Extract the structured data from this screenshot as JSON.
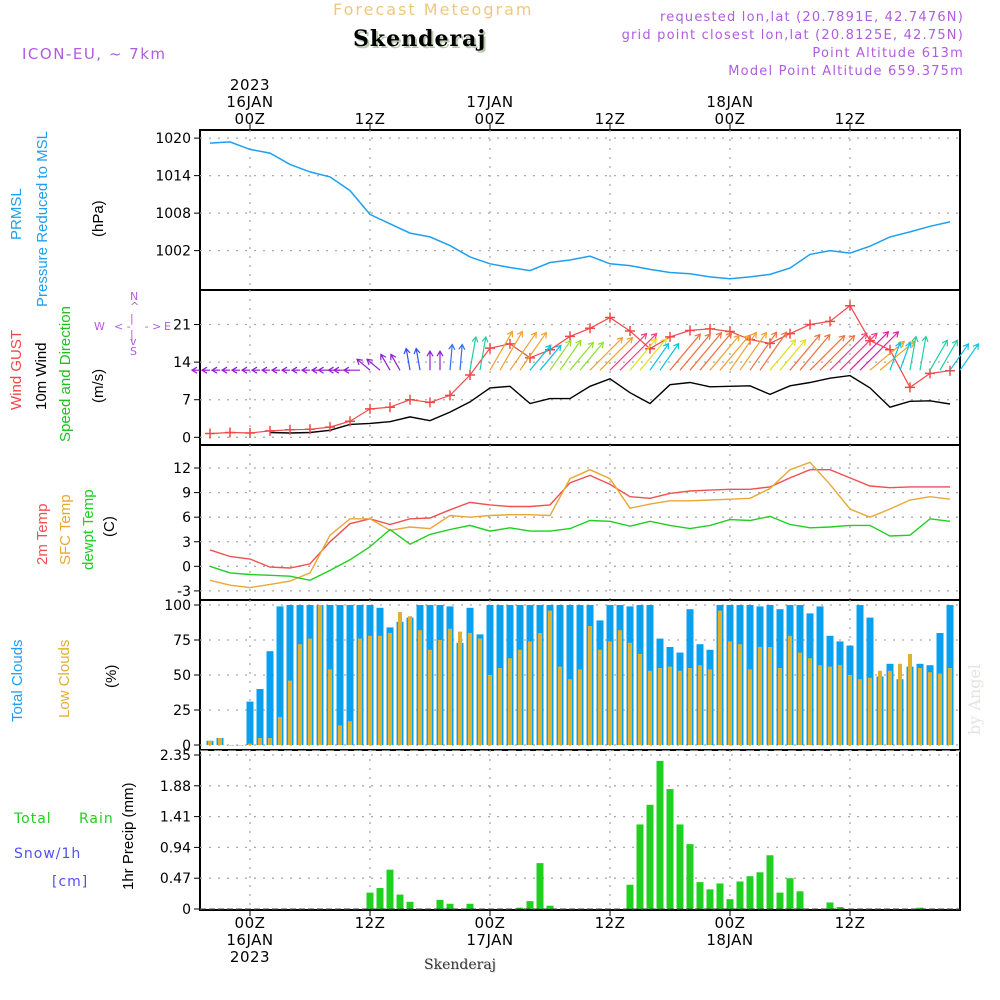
{
  "header": {
    "product_title": "Forecast Meteogram",
    "station": "Skenderaj",
    "model": "ICON-EU, ~ 7km",
    "requested": "requested lon,lat (20.7891E, 42.7476N)",
    "grid_point": "grid point closest lon,lat (20.8125E, 42.75N)",
    "point_altitude": "Point Altitude 613m",
    "model_altitude": "Model Point Altitude 659.375m"
  },
  "time_axis": {
    "top_labels": [
      {
        "hour": 0,
        "lines": [
          "2023",
          "16JAN",
          "00Z"
        ]
      },
      {
        "hour": 12,
        "lines": [
          "",
          "",
          "12Z"
        ]
      },
      {
        "hour": 24,
        "lines": [
          "",
          "17JAN",
          "00Z"
        ]
      },
      {
        "hour": 36,
        "lines": [
          "",
          "",
          "12Z"
        ]
      },
      {
        "hour": 48,
        "lines": [
          "",
          "18JAN",
          "00Z"
        ]
      },
      {
        "hour": 60,
        "lines": [
          "",
          "",
          "12Z"
        ]
      }
    ],
    "bottom_labels": [
      {
        "hour": 0,
        "lines": [
          "00Z",
          "16JAN",
          "2023"
        ]
      },
      {
        "hour": 12,
        "lines": [
          "12Z"
        ]
      },
      {
        "hour": 24,
        "lines": [
          "00Z",
          "17JAN"
        ]
      },
      {
        "hour": 36,
        "lines": [
          "12Z"
        ]
      },
      {
        "hour": 48,
        "lines": [
          "00Z",
          "18JAN"
        ]
      },
      {
        "hour": 60,
        "lines": [
          "12Z"
        ]
      }
    ],
    "range_hours": [
      -5,
      71
    ]
  },
  "footer": {
    "station": "Skenderaj",
    "credit": "by Angel"
  },
  "labels": {
    "pressure": {
      "line1": "PRMSL",
      "line2": "Pressure Reduced to MSL",
      "unit": "(hPa)"
    },
    "wind": {
      "gust": "Wind GUST",
      "wind10": "10m Wind",
      "speed_dir": "Speed and Direction",
      "unit": "(m/s)",
      "compass": {
        "n": "N",
        "s": "S",
        "e": "E",
        "w": "W"
      }
    },
    "temp": {
      "t2m": "2m Temp",
      "sfc": "SFC Temp",
      "dewpt": "dewpt Temp",
      "unit": "(C)"
    },
    "clouds": {
      "total": "Total Clouds",
      "low": "Low Clouds",
      "unit": "(%)"
    },
    "precip": {
      "total": "Total",
      "rain": "Rain",
      "snow": "Snow/1h",
      "snow_unit": "[cm]",
      "axis": "1hr Precip (mm)"
    }
  },
  "colors": {
    "pressure": "#1ea0f0",
    "gust": "#f04848",
    "wind10": "#000000",
    "speed_dir": "#20c020",
    "t2m": "#f05050",
    "sfc": "#e8a838",
    "dewpt": "#20d020",
    "total_clouds": "#0aa0f0",
    "low_clouds": "#e0b030",
    "rain": "#20d020",
    "snow": "#5050f0",
    "meta": "#b05ce0"
  },
  "chart_data": [
    {
      "type": "line",
      "title": "PRMSL Pressure Reduced to MSL",
      "ylabel": "(hPa)",
      "yticks": [
        1002,
        1008,
        1014,
        1020
      ],
      "ylim": [
        996.5,
        1020.5
      ],
      "x_hours": [
        -4,
        -2,
        0,
        2,
        4,
        6,
        8,
        10,
        12,
        14,
        16,
        18,
        20,
        22,
        24,
        26,
        28,
        30,
        32,
        34,
        36,
        38,
        40,
        42,
        44,
        46,
        48,
        50,
        52,
        54,
        56,
        58,
        60,
        62,
        64,
        66,
        68,
        70
      ],
      "series": [
        {
          "name": "PRMSL",
          "values": [
            1019.2,
            1019.4,
            1018.2,
            1017.6,
            1015.8,
            1014.6,
            1013.8,
            1011.6,
            1007.8,
            1006.3,
            1004.8,
            1004.2,
            1002.8,
            1001.0,
            999.9,
            999.3,
            998.8,
            1000.1,
            1000.5,
            1001.1,
            999.9,
            999.6,
            999.0,
            998.5,
            998.3,
            997.8,
            997.5,
            997.8,
            998.2,
            999.2,
            1001.4,
            1002.0,
            1001.6,
            1002.7,
            1004.2,
            1005.0,
            1005.9,
            1006.6
          ]
        }
      ]
    },
    {
      "type": "line",
      "title": "Wind GUST / 10m Wind Speed and Direction",
      "ylabel": "(m/s)",
      "yticks": [
        0,
        7,
        14,
        21
      ],
      "ylim": [
        -0.5,
        26.5
      ],
      "x_hours": [
        -4,
        -2,
        0,
        2,
        4,
        6,
        8,
        10,
        12,
        14,
        16,
        18,
        20,
        22,
        24,
        26,
        28,
        30,
        32,
        34,
        36,
        38,
        40,
        42,
        44,
        46,
        48,
        50,
        52,
        54,
        56,
        58,
        60,
        62,
        64,
        66,
        68,
        70
      ],
      "series": [
        {
          "name": "Wind GUST",
          "values": [
            0.7,
            0.9,
            0.8,
            1.2,
            1.4,
            1.5,
            1.9,
            3.0,
            5.3,
            5.6,
            7.0,
            6.5,
            7.8,
            11.6,
            16.6,
            17.4,
            14.8,
            16.3,
            18.8,
            20.3,
            22.3,
            19.8,
            16.5,
            18.7,
            19.9,
            20.2,
            19.7,
            18.2,
            17.5,
            19.3,
            21.0,
            21.6,
            24.5,
            18.0,
            16.3,
            9.3,
            11.9,
            12.4
          ]
        },
        {
          "name": "10m Wind",
          "values": [
            null,
            null,
            null,
            0.9,
            0.8,
            0.9,
            1.3,
            2.4,
            2.6,
            2.9,
            3.8,
            3.1,
            4.7,
            6.6,
            9.2,
            9.5,
            6.3,
            7.2,
            7.2,
            9.5,
            10.9,
            8.3,
            6.3,
            9.8,
            10.2,
            9.4,
            9.5,
            9.6,
            8.0,
            9.6,
            10.2,
            11.0,
            11.5,
            9.2,
            5.6,
            6.7,
            6.8,
            6.2
          ]
        }
      ],
      "wind_direction_deg": [
        90,
        90,
        90,
        90,
        90,
        90,
        90,
        90,
        130,
        150,
        170,
        180,
        185,
        190,
        210,
        215,
        220,
        215,
        220,
        225,
        225,
        220,
        215,
        220,
        220,
        220,
        215,
        215,
        220,
        220,
        225,
        225,
        225,
        230,
        200,
        190,
        210,
        215
      ],
      "wind_direction_note": "arrows point in direction wind blows toward; colors cycle purple → blue → cyan → green → yellow → orange → magenta by speed"
    },
    {
      "type": "line",
      "title": "2m Temp / SFC Temp / dewpt Temp",
      "ylabel": "(C)",
      "yticks": [
        -3,
        0,
        3,
        6,
        9,
        12
      ],
      "ylim": [
        -3.5,
        14.2
      ],
      "x_hours": [
        -4,
        -2,
        0,
        2,
        4,
        6,
        8,
        10,
        12,
        14,
        16,
        18,
        20,
        22,
        24,
        26,
        28,
        30,
        32,
        34,
        36,
        38,
        40,
        42,
        44,
        46,
        48,
        50,
        52,
        54,
        56,
        58,
        60,
        62,
        64,
        66,
        68,
        70
      ],
      "series": [
        {
          "name": "2m Temp",
          "values": [
            2.0,
            1.2,
            0.9,
            -0.1,
            -0.2,
            0.3,
            3.0,
            5.2,
            5.8,
            5.1,
            5.8,
            5.9,
            6.9,
            7.8,
            7.5,
            7.3,
            7.3,
            7.5,
            10.2,
            11.1,
            10.0,
            8.5,
            8.3,
            8.9,
            9.2,
            9.3,
            9.4,
            9.4,
            9.7,
            10.8,
            11.8,
            11.8,
            10.8,
            9.8,
            9.6,
            9.7,
            9.7,
            9.7
          ]
        },
        {
          "name": "SFC Temp",
          "values": [
            -1.7,
            -2.3,
            -2.6,
            -2.2,
            -1.8,
            -0.8,
            3.8,
            5.8,
            5.8,
            4.4,
            4.8,
            4.6,
            6.2,
            6.0,
            6.2,
            6.3,
            6.3,
            6.2,
            10.7,
            11.8,
            10.7,
            7.1,
            7.6,
            8.0,
            8.0,
            8.1,
            8.2,
            8.3,
            9.5,
            11.8,
            12.7,
            10.0,
            7.0,
            6.0,
            7.0,
            8.1,
            8.5,
            8.2
          ]
        },
        {
          "name": "dewpt Temp",
          "values": [
            0.0,
            -0.8,
            -1.0,
            -1.1,
            -1.2,
            -1.7,
            -0.5,
            0.8,
            2.4,
            4.5,
            2.7,
            3.9,
            4.5,
            5.0,
            4.3,
            4.7,
            4.3,
            4.3,
            4.6,
            5.6,
            5.5,
            4.9,
            5.5,
            5.0,
            4.6,
            5.0,
            5.7,
            5.6,
            6.1,
            5.1,
            4.7,
            4.8,
            5.0,
            5.0,
            3.7,
            3.8,
            5.8,
            5.5
          ]
        }
      ]
    },
    {
      "type": "bar",
      "title": "Total Clouds / Low Clouds",
      "ylabel": "(%)",
      "yticks": [
        0,
        25,
        50,
        75,
        100
      ],
      "ylim": [
        0,
        100
      ],
      "x_hours": [
        -4,
        -3,
        -2,
        -1,
        0,
        1,
        2,
        3,
        4,
        5,
        6,
        7,
        8,
        9,
        10,
        11,
        12,
        13,
        14,
        15,
        16,
        17,
        18,
        19,
        20,
        21,
        22,
        23,
        24,
        25,
        26,
        27,
        28,
        29,
        30,
        31,
        32,
        33,
        34,
        35,
        36,
        37,
        38,
        39,
        40,
        41,
        42,
        43,
        44,
        45,
        46,
        47,
        48,
        49,
        50,
        51,
        52,
        53,
        54,
        55,
        56,
        57,
        58,
        59,
        60,
        61,
        62,
        63,
        64,
        65,
        66,
        67,
        68,
        69,
        70
      ],
      "series": [
        {
          "name": "Total Clouds",
          "values": [
            3,
            5,
            0,
            0,
            31,
            40,
            67,
            99,
            100,
            100,
            100,
            100,
            100,
            100,
            100,
            100,
            100,
            98,
            84,
            88,
            91,
            100,
            100,
            100,
            99,
            73,
            98,
            79,
            100,
            100,
            100,
            100,
            100,
            100,
            100,
            100,
            100,
            100,
            100,
            89,
            100,
            100,
            99,
            100,
            100,
            76,
            70,
            66,
            97,
            72,
            68,
            100,
            100,
            100,
            100,
            99,
            100,
            97,
            100,
            100,
            94,
            99,
            78,
            74,
            71,
            100,
            91,
            49,
            58,
            47,
            56,
            58,
            57,
            80,
            100
          ]
        },
        {
          "name": "Low Clouds",
          "values": [
            3,
            5,
            0,
            0,
            1,
            5,
            5,
            20,
            46,
            72,
            76,
            100,
            54,
            14,
            17,
            76,
            78,
            78,
            80,
            95,
            92,
            82,
            68,
            75,
            83,
            81,
            80,
            76,
            50,
            55,
            62,
            68,
            74,
            80,
            96,
            56,
            47,
            54,
            85,
            68,
            74,
            82,
            73,
            65,
            53,
            55,
            56,
            53,
            55,
            57,
            54,
            96,
            74,
            72,
            54,
            70,
            70,
            55,
            78,
            66,
            62,
            57,
            56,
            57,
            50,
            47,
            48,
            53,
            53,
            58,
            65,
            55,
            52,
            51,
            55
          ]
        }
      ]
    },
    {
      "type": "bar",
      "title": "1hr Precip (mm): Total Rain, Snow/1h [cm]",
      "ylabel": "1hr Precip (mm)",
      "yticks": [
        0,
        0.47,
        0.94,
        1.41,
        1.88,
        2.35
      ],
      "ylim": [
        0,
        2.35
      ],
      "x_hours": [
        12,
        13,
        14,
        15,
        16,
        17,
        18,
        19,
        20,
        21,
        22,
        23,
        24,
        25,
        26,
        27,
        28,
        29,
        30,
        31,
        32,
        33,
        34,
        35,
        36,
        37,
        38,
        39,
        40,
        41,
        42,
        43,
        44,
        45,
        46,
        47,
        48,
        49,
        50,
        51,
        52,
        53,
        54,
        55,
        56,
        57,
        58,
        59,
        60,
        61,
        62,
        63,
        64,
        65,
        66,
        67,
        68,
        69,
        70
      ],
      "series": [
        {
          "name": "Total Rain",
          "values": [
            0.25,
            0.32,
            0.6,
            0.22,
            0.11,
            0,
            0,
            0.14,
            0.08,
            0,
            0.08,
            0,
            0,
            0,
            0,
            0.02,
            0.12,
            0.7,
            0.05,
            0,
            0,
            0,
            0,
            0,
            0,
            0,
            0.37,
            1.29,
            1.59,
            2.26,
            1.83,
            1.29,
            0.99,
            0.41,
            0.3,
            0.39,
            0.15,
            0.42,
            0.5,
            0.56,
            0.82,
            0.25,
            0.47,
            0.27,
            0,
            0,
            0.1,
            0.03,
            0,
            0,
            0,
            0,
            0,
            0,
            0,
            0.02,
            0,
            0,
            0
          ]
        }
      ]
    }
  ]
}
